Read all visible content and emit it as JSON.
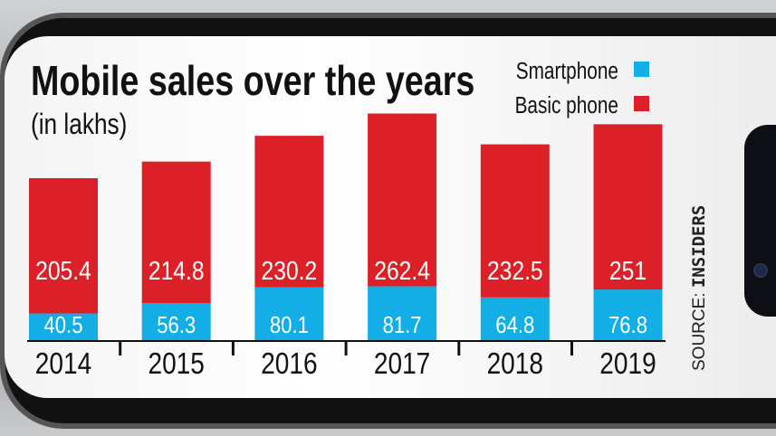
{
  "chart_data": {
    "type": "bar",
    "stacked": true,
    "title": "Mobile sales over the years",
    "subtitle": "(in lakhs)",
    "categories": [
      "2014",
      "2015",
      "2016",
      "2017",
      "2018",
      "2019"
    ],
    "series": [
      {
        "name": "Smartphone",
        "color": "#14aee6",
        "values": [
          40.5,
          56.3,
          80.1,
          81.7,
          64.8,
          76.8
        ],
        "labels": [
          "40.5",
          "56.3",
          "80.1",
          "81.7",
          "64.8",
          "76.8"
        ]
      },
      {
        "name": "Basic phone",
        "color": "#dc2027",
        "values": [
          205.4,
          214.8,
          230.2,
          262.4,
          232.5,
          251
        ],
        "labels": [
          "205.4",
          "214.8",
          "230.2",
          "262.4",
          "232.5",
          "251"
        ]
      }
    ],
    "legend_position": "top-right",
    "grid": false,
    "source_prefix": "SOURCE:",
    "source": "INSIDERS"
  }
}
